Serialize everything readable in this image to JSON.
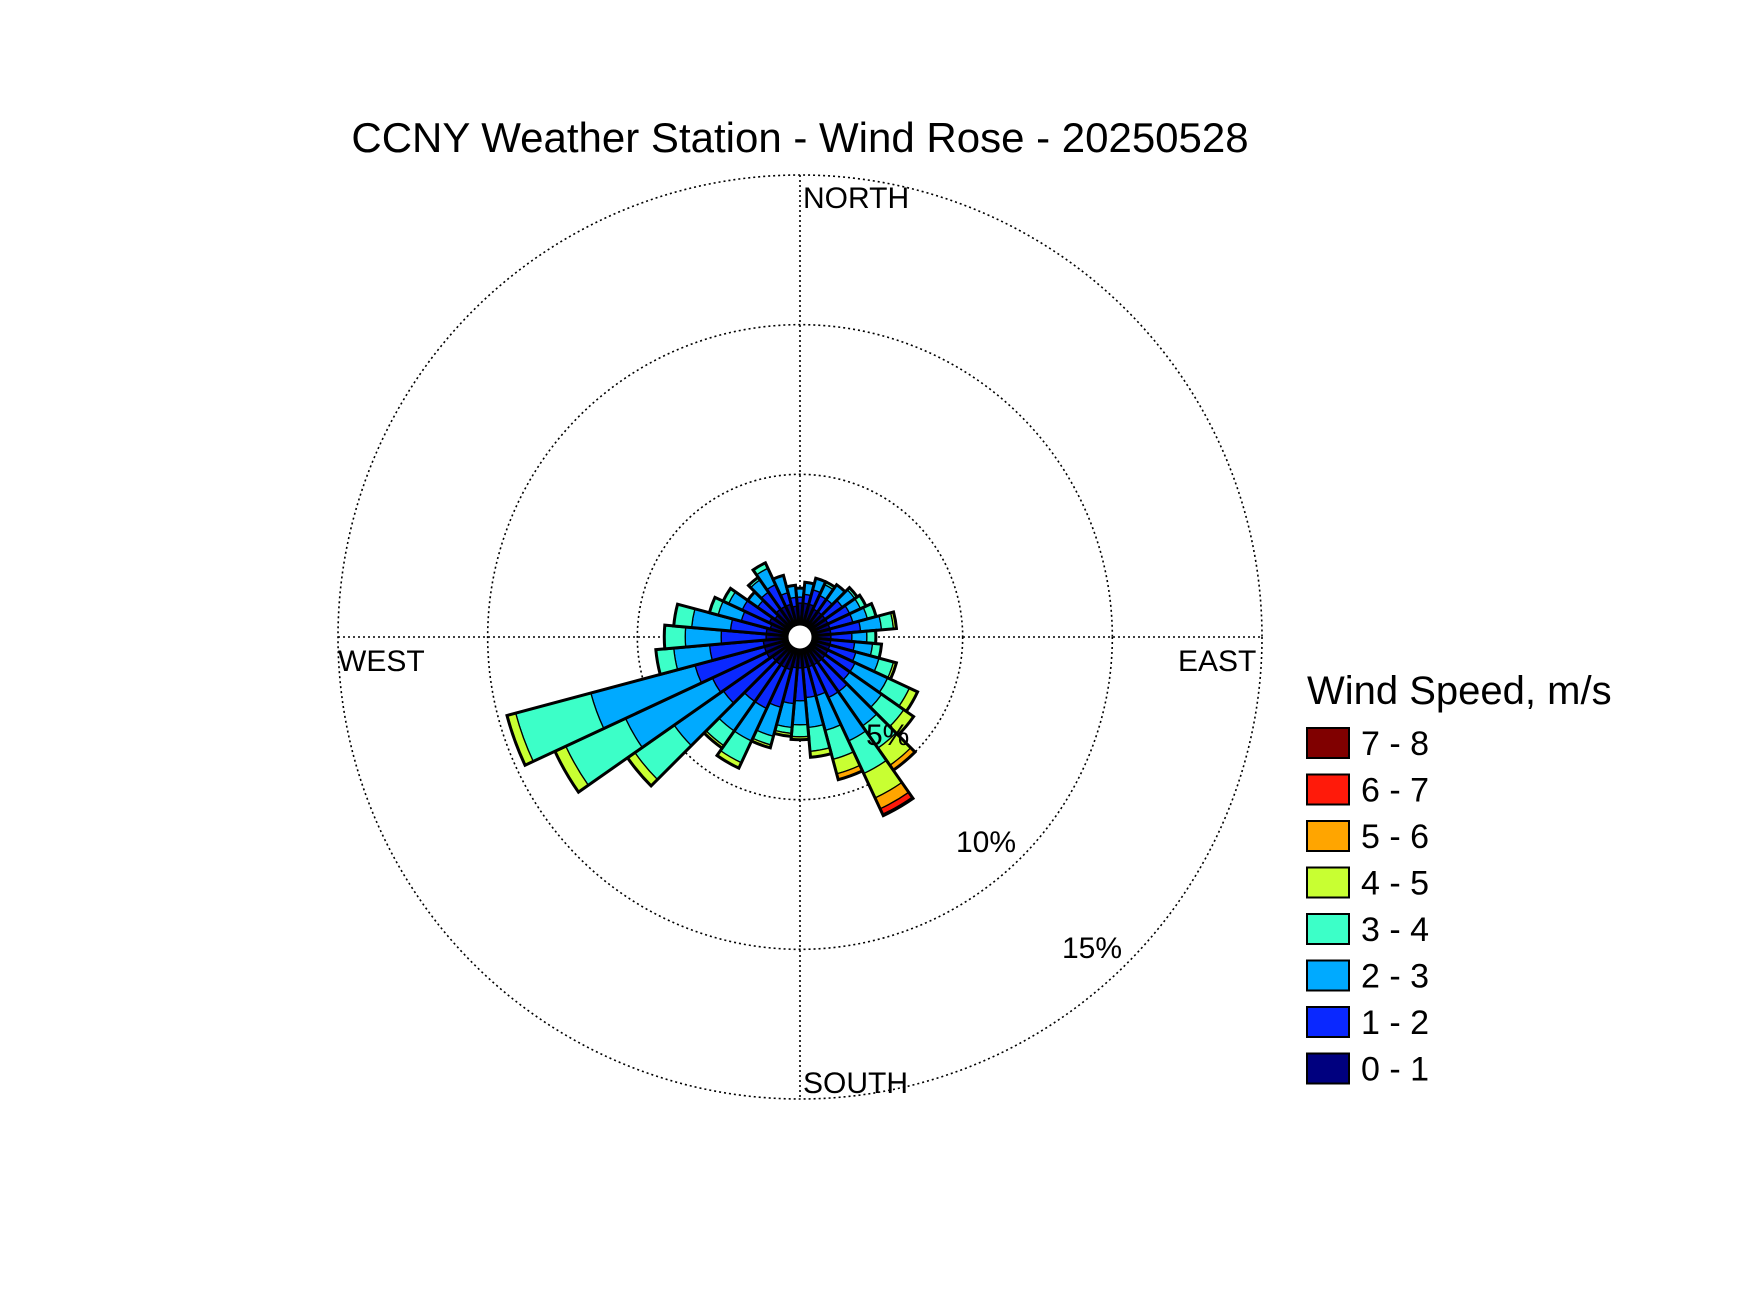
{
  "chart_data": {
    "type": "wind-rose",
    "title": "CCNY Weather Station - Wind Rose - 20250528",
    "directions": {
      "north": "NORTH",
      "south": "SOUTH",
      "east": "EAST",
      "west": "WEST"
    },
    "rings": [
      {
        "value": 5,
        "label": "5%"
      },
      {
        "value": 10,
        "label": "10%"
      },
      {
        "value": 15,
        "label": "15%"
      }
    ],
    "rmax": 15,
    "legend": {
      "title": "Wind Speed, m/s",
      "bins": [
        {
          "label": "7 - 8",
          "color": "#800000"
        },
        {
          "label": "6 - 7",
          "color": "#ff1a0a"
        },
        {
          "label": "5 - 6",
          "color": "#ffa500"
        },
        {
          "label": "4 - 5",
          "color": "#c8ff32"
        },
        {
          "label": "3 - 4",
          "color": "#3cffc8"
        },
        {
          "label": "2 - 3",
          "color": "#00aaff"
        },
        {
          "label": "1 - 2",
          "color": "#0a28ff"
        },
        {
          "label": "0 - 1",
          "color": "#00007f"
        }
      ]
    },
    "bin_order_inner_to_outer": [
      "0 - 1",
      "1 - 2",
      "2 - 3",
      "3 - 4",
      "4 - 5",
      "5 - 6",
      "6 - 7",
      "7 - 8"
    ],
    "sectors": [
      {
        "dir": 0,
        "values": [
          0.7,
          0.2,
          0.3,
          0,
          0,
          0,
          0,
          0
        ]
      },
      {
        "dir": 10,
        "values": [
          0.7,
          0.3,
          0.4,
          0,
          0,
          0,
          0,
          0
        ]
      },
      {
        "dir": 20,
        "values": [
          0.7,
          0.5,
          0.4,
          0,
          0,
          0,
          0,
          0
        ]
      },
      {
        "dir": 30,
        "values": [
          0.6,
          0.5,
          0.4,
          0.1,
          0,
          0,
          0,
          0
        ]
      },
      {
        "dir": 40,
        "values": [
          0.6,
          0.5,
          0.6,
          0,
          0,
          0,
          0,
          0
        ]
      },
      {
        "dir": 50,
        "values": [
          0.6,
          0.7,
          0.5,
          0.1,
          0,
          0,
          0,
          0
        ]
      },
      {
        "dir": 60,
        "values": [
          0.6,
          0.8,
          0.4,
          0.2,
          0,
          0,
          0,
          0
        ]
      },
      {
        "dir": 70,
        "values": [
          0.6,
          0.8,
          0.5,
          0.3,
          0,
          0,
          0,
          0
        ]
      },
      {
        "dir": 80,
        "values": [
          0.6,
          1.0,
          0.7,
          0.4,
          0.1,
          0,
          0,
          0
        ]
      },
      {
        "dir": 90,
        "values": [
          0.6,
          0.7,
          0.5,
          0.3,
          0,
          0,
          0,
          0
        ]
      },
      {
        "dir": 100,
        "values": [
          0.6,
          0.8,
          0.6,
          0.3,
          0,
          0,
          0,
          0
        ]
      },
      {
        "dir": 110,
        "values": [
          0.6,
          0.9,
          0.8,
          0.5,
          0.1,
          0,
          0,
          0
        ]
      },
      {
        "dir": 120,
        "values": [
          0.6,
          1.0,
          1.2,
          0.8,
          0.3,
          0,
          0,
          0
        ]
      },
      {
        "dir": 130,
        "values": [
          0.6,
          1.0,
          1.3,
          0.9,
          0.4,
          0,
          0,
          0
        ]
      },
      {
        "dir": 140,
        "values": [
          0.6,
          1.2,
          1.4,
          0.9,
          0.7,
          0.2,
          0,
          0
        ]
      },
      {
        "dir": 150,
        "values": [
          0.6,
          1.2,
          1.6,
          1.2,
          0.9,
          0.4,
          0.2,
          0.05
        ]
      },
      {
        "dir": 160,
        "values": [
          0.6,
          1.0,
          1.2,
          1.0,
          0.5,
          0.2,
          0,
          0
        ]
      },
      {
        "dir": 170,
        "values": [
          0.6,
          1.0,
          1.0,
          0.8,
          0.2,
          0,
          0,
          0
        ]
      },
      {
        "dir": 180,
        "values": [
          0.6,
          1.1,
          0.8,
          0.4,
          0.1,
          0,
          0,
          0
        ]
      },
      {
        "dir": 190,
        "values": [
          0.6,
          1.2,
          0.8,
          0.2,
          0.1,
          0,
          0,
          0
        ]
      },
      {
        "dir": 200,
        "values": [
          0.7,
          1.3,
          1.0,
          0.3,
          0.1,
          0,
          0,
          0
        ]
      },
      {
        "dir": 210,
        "values": [
          0.7,
          1.5,
          1.2,
          0.8,
          0.2,
          0,
          0,
          0
        ]
      },
      {
        "dir": 220,
        "values": [
          0.7,
          1.5,
          1.2,
          0.6,
          0.1,
          0,
          0,
          0
        ]
      },
      {
        "dir": 230,
        "values": [
          0.7,
          2.0,
          2.0,
          1.6,
          0.3,
          0,
          0,
          0
        ]
      },
      {
        "dir": 240,
        "values": [
          0.8,
          2.0,
          3.2,
          2.2,
          0.4,
          0,
          0,
          0
        ]
      },
      {
        "dir": 250,
        "values": [
          0.8,
          2.4,
          3.6,
          2.6,
          0.3,
          0,
          0,
          0
        ]
      },
      {
        "dir": 260,
        "values": [
          0.8,
          1.8,
          1.2,
          0.6,
          0,
          0,
          0,
          0
        ]
      },
      {
        "dir": 270,
        "values": [
          0.7,
          1.5,
          1.2,
          0.7,
          0,
          0,
          0,
          0
        ]
      },
      {
        "dir": 280,
        "values": [
          0.7,
          1.2,
          1.3,
          0.6,
          0,
          0,
          0,
          0
        ]
      },
      {
        "dir": 290,
        "values": [
          0.6,
          1.0,
          0.8,
          0.3,
          0,
          0,
          0,
          0
        ]
      },
      {
        "dir": 300,
        "values": [
          0.7,
          1.0,
          0.5,
          0.2,
          0,
          0,
          0,
          0
        ]
      },
      {
        "dir": 310,
        "values": [
          0.6,
          0.7,
          0.4,
          0,
          0,
          0,
          0,
          0
        ]
      },
      {
        "dir": 320,
        "values": [
          0.7,
          0.7,
          0.5,
          0.1,
          0,
          0,
          0,
          0
        ]
      },
      {
        "dir": 330,
        "values": [
          0.7,
          0.8,
          0.6,
          0.2,
          0,
          0,
          0,
          0
        ]
      },
      {
        "dir": 340,
        "values": [
          0.7,
          0.4,
          0.6,
          0,
          0,
          0,
          0,
          0
        ]
      },
      {
        "dir": 350,
        "values": [
          0.6,
          0.3,
          0.4,
          0,
          0,
          0,
          0,
          0
        ]
      }
    ]
  }
}
